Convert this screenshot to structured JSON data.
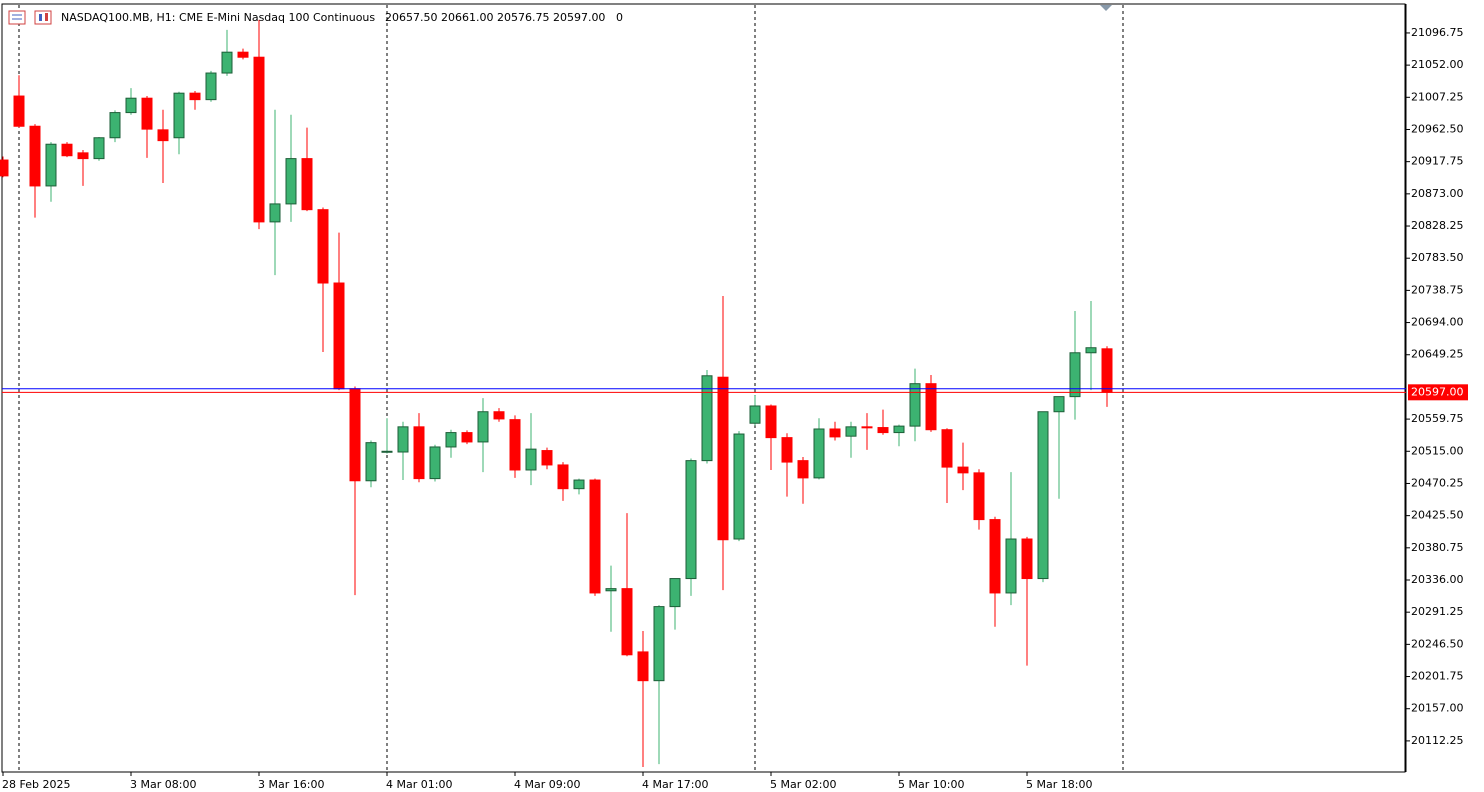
{
  "chart_data": {
    "type": "candlestick",
    "header": {
      "symbol": "NASDAQ100.MB, H1:",
      "description": "CME E-Mini Nasdaq 100 Continuous",
      "ohlc": "20657.50 20661.00 20576.75 20597.00",
      "volume": "0"
    },
    "categories": [
      "28 Feb 2025",
      null,
      null,
      null,
      null,
      null,
      null,
      null,
      "3 Mar 08:00",
      null,
      null,
      null,
      null,
      null,
      null,
      null,
      "3 Mar 16:00",
      null,
      null,
      null,
      null,
      null,
      null,
      null,
      "4 Mar 01:00",
      null,
      null,
      null,
      null,
      null,
      null,
      null,
      "4 Mar 09:00",
      null,
      null,
      null,
      null,
      null,
      null,
      null,
      "4 Mar 17:00",
      null,
      null,
      null,
      null,
      null,
      null,
      null,
      "5 Mar 02:00",
      null,
      null,
      null,
      null,
      null,
      null,
      null,
      "5 Mar 10:00",
      null,
      null,
      null,
      null,
      null,
      null,
      null,
      "5 Mar 18:00",
      null,
      null,
      null,
      null,
      null
    ],
    "open": [
      20920,
      21009,
      20967,
      20884,
      20942,
      20930,
      20922,
      20951,
      20986,
      21006,
      20962,
      20951,
      21013,
      21004,
      21041,
      21070,
      21063,
      20834,
      20859,
      20922,
      20851,
      20749,
      20602,
      20474,
      20514,
      20514,
      20549,
      20477,
      20521,
      20541,
      20528,
      20570,
      20559,
      20489,
      20516,
      20496,
      20463,
      20475,
      20321,
      20324,
      20236,
      20196,
      20299,
      20338,
      20502,
      20618,
      20393,
      20554,
      20578,
      20534,
      20502,
      20478,
      20546,
      20536,
      20549,
      20548,
      20541,
      20550,
      20609,
      20545,
      20493,
      20485,
      20420,
      20318,
      20393,
      20338,
      20570,
      20591,
      20652,
      20657.5
    ],
    "high": [
      20925,
      21038,
      20970,
      20945,
      20945,
      20934,
      20952,
      20989,
      21020,
      21009,
      20990,
      21015,
      21016,
      21044,
      21101,
      21075,
      21115,
      20990,
      20983,
      20965,
      20854,
      20819,
      20605,
      20530,
      20561,
      20556,
      20568,
      20524,
      20545,
      20544,
      20589,
      20575,
      20565,
      20568,
      20520,
      20500,
      20477,
      20477,
      20356,
      20429,
      20265,
      20301,
      20338,
      20505,
      20628,
      20731,
      20543,
      20593,
      20580,
      20540,
      20507,
      20561,
      20556,
      20556,
      20568,
      20573,
      20552,
      20630,
      20621,
      20547,
      20527,
      20490,
      20424,
      20486,
      20396,
      20570,
      20591,
      20710,
      20724,
      20661
    ],
    "low": [
      20896,
      20965,
      20840,
      20862,
      20924,
      20884,
      20919,
      20945,
      20983,
      20923,
      20888,
      20928,
      20990,
      21001,
      21037,
      21060,
      20824,
      20760,
      20834,
      20849,
      20653,
      20600,
      20315,
      20465,
      20512,
      20475,
      20472,
      20473,
      20506,
      20525,
      20486,
      20556,
      20478,
      20468,
      20490,
      20446,
      20455,
      20314,
      20264,
      20230,
      20076,
      20080,
      20267,
      20314,
      20498,
      20322,
      20390,
      20551,
      20489,
      20452,
      20442,
      20476,
      20530,
      20506,
      20517,
      20538,
      20522,
      20529,
      20542,
      20443,
      20461,
      20406,
      20271,
      20301,
      20217,
      20333,
      20449,
      20559,
      20600,
      20576.75
    ],
    "close": [
      20898,
      20967,
      20884,
      20942,
      20926,
      20922,
      20951,
      20986,
      21006,
      20963,
      20947,
      21013,
      21004,
      21041,
      21070,
      21063,
      20834,
      20859,
      20922,
      20851,
      20749,
      20602,
      20474,
      20527,
      20515,
      20549,
      20477,
      20521,
      20541,
      20528,
      20570,
      20560,
      20489,
      20518,
      20496,
      20463,
      20475,
      20318,
      20324,
      20232,
      20196,
      20299,
      20338,
      20502,
      20620,
      20392,
      20539,
      20578,
      20534,
      20500,
      20478,
      20546,
      20535,
      20549,
      20548,
      20541,
      20550,
      20609,
      20545,
      20493,
      20485,
      20420,
      20318,
      20393,
      20338,
      20570,
      20591,
      20652,
      20659,
      20597
    ],
    "up_color": "#3cb371",
    "down_color": "#ff0000",
    "ylim": [
      20069,
      21137
    ],
    "yticks": [
      {
        "value": 20112.25,
        "label": "20112.25"
      },
      {
        "value": 20157,
        "label": "20157.00"
      },
      {
        "value": 20201.75,
        "label": "20201.75"
      },
      {
        "value": 20246.5,
        "label": "20246.50"
      },
      {
        "value": 20291.25,
        "label": "20291.25"
      },
      {
        "value": 20336,
        "label": "20336.00"
      },
      {
        "value": 20380.75,
        "label": "20380.75"
      },
      {
        "value": 20425.5,
        "label": "20425.50"
      },
      {
        "value": 20470.25,
        "label": "20470.25"
      },
      {
        "value": 20515,
        "label": "20515.00"
      },
      {
        "value": 20559.75,
        "label": "20559.75"
      },
      {
        "value": 20649.25,
        "label": "20649.25"
      },
      {
        "value": 20694,
        "label": "20694.00"
      },
      {
        "value": 20738.75,
        "label": "20738.75"
      },
      {
        "value": 20783.5,
        "label": "20783.50"
      },
      {
        "value": 20828.25,
        "label": "20828.25"
      },
      {
        "value": 20873,
        "label": "20873.00"
      },
      {
        "value": 20917.75,
        "label": "20917.75"
      },
      {
        "value": 20962.5,
        "label": "20962.50"
      },
      {
        "value": 21007.25,
        "label": "21007.25"
      },
      {
        "value": 21052,
        "label": "21052.00"
      },
      {
        "value": 21096.75,
        "label": "21096.75"
      }
    ],
    "last_price": {
      "value": 20597,
      "label": "20597.00",
      "color": "#ff0000"
    },
    "ask_line": {
      "value": 20602,
      "color": "#0000ff"
    },
    "grid": false
  }
}
